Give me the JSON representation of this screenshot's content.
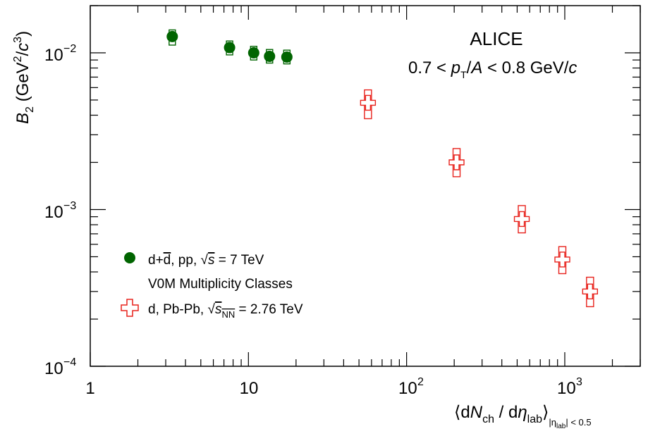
{
  "chart_data": {
    "type": "scatter",
    "x_scale": "log",
    "y_scale": "log",
    "xlim": [
      1,
      3000
    ],
    "ylim": [
      0.0001,
      0.02
    ],
    "x_ticks": [
      1,
      10,
      100,
      1000
    ],
    "y_ticks": [
      0.0001,
      0.001,
      0.01
    ],
    "x_tick_labels": {
      "t1": "1",
      "t10": "10",
      "t100_base": "10",
      "t100_exp": "2",
      "t1000_base": "10",
      "t1000_exp": "3"
    },
    "y_tick_labels": {
      "a_base": "10",
      "a_exp": "−4",
      "b_base": "10",
      "b_exp": "−3",
      "c_base": "10",
      "c_exp": "−2"
    },
    "xlabel": {
      "open": "⟨d",
      "N": "N",
      "ch": "ch",
      "slash": " / d",
      "eta": "η",
      "lab": "lab",
      "close": "⟩",
      "sub_eta": "|η",
      "sub_lab": "lab",
      "sub_rest": "| < 0.5"
    },
    "ylabel": {
      "B": "B",
      "sub": "2",
      "unit1": " (GeV",
      "sup1": "2",
      "unit2": "/",
      "c": "c",
      "sup2": "3",
      "unit3": ")"
    },
    "annotations": {
      "experiment": "ALICE",
      "pt_range": {
        "pre": "0.7 < ",
        "p": "p",
        "T": "T",
        "mid": "/",
        "A": "A",
        "post": " < 0.8 GeV/",
        "c": "c"
      }
    },
    "legend": {
      "placement": "left",
      "entry1": {
        "text_a": "d+",
        "d_bar": "d",
        "text_b": ", pp, ",
        "sqrt_s": "s",
        "text_c": " = 7 TeV"
      },
      "entry1_sub": "V0M Multiplicity Classes",
      "entry2": {
        "text_a": "d, Pb-Pb, ",
        "sqrt_s": "s",
        "nn": "NN",
        "text_c": " = 2.76 TeV"
      }
    },
    "series": [
      {
        "color": "#006400",
        "marker": "filled-circle",
        "points": [
          {
            "x": 3.3,
            "y": 0.0127,
            "syst_lo": 0.0112,
            "syst_hi": 0.014
          },
          {
            "x": 7.6,
            "y": 0.0108,
            "syst_lo": 0.0097,
            "syst_hi": 0.0119
          },
          {
            "x": 10.8,
            "y": 0.01,
            "syst_lo": 0.009,
            "syst_hi": 0.011
          },
          {
            "x": 13.6,
            "y": 0.0095,
            "syst_lo": 0.0086,
            "syst_hi": 0.0105
          },
          {
            "x": 17.5,
            "y": 0.0094,
            "syst_lo": 0.0085,
            "syst_hi": 0.0104
          }
        ]
      },
      {
        "color": "#e8221c",
        "marker": "open-cross",
        "points": [
          {
            "x": 57,
            "y": 0.0048,
            "syst_lo": 0.0038,
            "syst_hi": 0.0058
          },
          {
            "x": 207,
            "y": 0.002,
            "syst_lo": 0.00162,
            "syst_hi": 0.00245
          },
          {
            "x": 535,
            "y": 0.00087,
            "syst_lo": 0.00071,
            "syst_hi": 0.00106
          },
          {
            "x": 965,
            "y": 0.00048,
            "syst_lo": 0.00039,
            "syst_hi": 0.00058
          },
          {
            "x": 1445,
            "y": 0.0003,
            "syst_lo": 0.00024,
            "syst_hi": 0.00037
          }
        ]
      }
    ]
  }
}
